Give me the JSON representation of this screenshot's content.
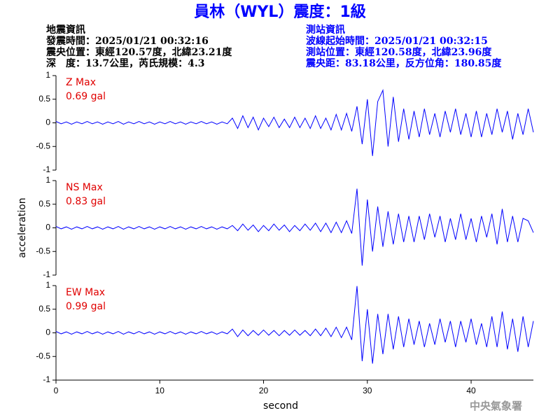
{
  "header": {
    "title": "員林（WYL）震度：1級",
    "left": [
      "地震資訊",
      "發震時間：2025/01/21 00:32:16",
      "震央位置：東經120.57度，北緯23.21度",
      "深　度：13.7公里，芮氏規模：4.3"
    ],
    "right": [
      "測站資訊",
      "波線起始時間：2025/01/21 00:32:15",
      "測站位置：東經120.58度，北緯23.96度",
      "震央距：83.18公里，反方位角：180.85度"
    ],
    "watermark": "中央氣象署"
  },
  "chart_data": [
    {
      "type": "line",
      "title": "Z Max",
      "subtitle": "0.69 gal",
      "color": "#0000ff",
      "x": [
        0,
        0.5,
        1,
        1.5,
        2,
        2.5,
        3,
        3.5,
        4,
        4.5,
        5,
        5.5,
        6,
        6.5,
        7,
        7.5,
        8,
        8.5,
        9,
        9.5,
        10,
        10.5,
        11,
        11.5,
        12,
        12.5,
        13,
        13.5,
        14,
        14.5,
        15,
        15.5,
        16,
        16.5,
        17,
        17.5,
        18,
        18.5,
        19,
        19.5,
        20,
        20.5,
        21,
        21.5,
        22,
        22.5,
        23,
        23.5,
        24,
        24.5,
        25,
        25.5,
        26,
        26.5,
        27,
        27.5,
        28,
        28.5,
        29,
        29.5,
        30,
        30.5,
        31,
        31.5,
        32,
        32.5,
        33,
        33.5,
        34,
        34.5,
        35,
        35.5,
        36,
        36.5,
        37,
        37.5,
        38,
        38.5,
        39,
        39.5,
        40,
        40.5,
        41,
        41.5,
        42,
        42.5,
        43,
        43.5,
        44,
        44.5,
        45,
        45.5,
        46
      ],
      "values": [
        0.03,
        -0.02,
        0.02,
        -0.03,
        0.02,
        -0.02,
        0.03,
        -0.02,
        0.02,
        -0.03,
        0.02,
        -0.02,
        0.03,
        -0.03,
        0.02,
        -0.02,
        0.03,
        -0.02,
        0.02,
        -0.03,
        0.02,
        -0.02,
        0.03,
        -0.02,
        0.02,
        -0.03,
        0.02,
        -0.02,
        0.03,
        -0.02,
        0.02,
        -0.03,
        0.02,
        -0.02,
        0.1,
        -0.12,
        0.15,
        -0.1,
        0.12,
        -0.15,
        0.1,
        -0.08,
        0.12,
        -0.1,
        0.08,
        -0.1,
        0.12,
        -0.1,
        0.1,
        -0.12,
        0.15,
        -0.12,
        0.1,
        -0.15,
        0.18,
        -0.15,
        0.2,
        -0.18,
        0.35,
        -0.45,
        0.5,
        -0.7,
        0.45,
        0.69,
        -0.5,
        0.55,
        -0.4,
        0.3,
        -0.35,
        0.25,
        -0.3,
        0.3,
        -0.25,
        0.2,
        -0.3,
        0.25,
        -0.2,
        0.3,
        -0.25,
        0.2,
        -0.3,
        0.25,
        -0.3,
        0.2,
        -0.25,
        0.3,
        -0.2,
        0.25,
        -0.35,
        0.2,
        -0.25,
        0.3,
        -0.2
      ],
      "xlim": [
        0,
        46
      ],
      "ylim": [
        -1,
        1
      ],
      "yticks": [
        -1,
        -0.5,
        0,
        0.5,
        1
      ]
    },
    {
      "type": "line",
      "title": "NS Max",
      "subtitle": "0.83 gal",
      "color": "#0000ff",
      "ylabel": "acceleration",
      "x": [
        0,
        0.5,
        1,
        1.5,
        2,
        2.5,
        3,
        3.5,
        4,
        4.5,
        5,
        5.5,
        6,
        6.5,
        7,
        7.5,
        8,
        8.5,
        9,
        9.5,
        10,
        10.5,
        11,
        11.5,
        12,
        12.5,
        13,
        13.5,
        14,
        14.5,
        15,
        15.5,
        16,
        16.5,
        17,
        17.5,
        18,
        18.5,
        19,
        19.5,
        20,
        20.5,
        21,
        21.5,
        22,
        22.5,
        23,
        23.5,
        24,
        24.5,
        25,
        25.5,
        26,
        26.5,
        27,
        27.5,
        28,
        28.5,
        29,
        29.5,
        30,
        30.5,
        31,
        31.5,
        32,
        32.5,
        33,
        33.5,
        34,
        34.5,
        35,
        35.5,
        36,
        36.5,
        37,
        37.5,
        38,
        38.5,
        39,
        39.5,
        40,
        40.5,
        41,
        41.5,
        42,
        42.5,
        43,
        43.5,
        44,
        44.5,
        45,
        45.5,
        46
      ],
      "values": [
        0.03,
        -0.02,
        0.02,
        -0.03,
        0.02,
        -0.02,
        0.03,
        -0.02,
        0.02,
        -0.03,
        0.02,
        -0.02,
        0.03,
        -0.03,
        0.02,
        -0.02,
        0.03,
        -0.02,
        0.02,
        -0.03,
        0.02,
        -0.02,
        0.03,
        -0.02,
        0.02,
        -0.03,
        0.02,
        -0.02,
        0.03,
        -0.02,
        0.02,
        -0.03,
        0.02,
        -0.02,
        0.05,
        -0.06,
        0.08,
        -0.05,
        0.06,
        -0.08,
        0.05,
        -0.06,
        0.08,
        -0.05,
        0.06,
        -0.08,
        0.05,
        -0.06,
        0.08,
        -0.05,
        0.1,
        -0.08,
        0.1,
        -0.1,
        0.12,
        -0.1,
        0.15,
        -0.12,
        0.83,
        -0.8,
        0.6,
        -0.5,
        0.45,
        -0.4,
        0.35,
        -0.35,
        0.3,
        -0.3,
        0.25,
        -0.3,
        0.25,
        -0.25,
        0.3,
        -0.2,
        0.25,
        -0.3,
        0.2,
        -0.25,
        0.3,
        -0.25,
        0.2,
        -0.3,
        0.25,
        -0.2,
        0.3,
        -0.35,
        0.4,
        -0.3,
        0.25,
        -0.3,
        0.2,
        0.15,
        -0.1
      ],
      "xlim": [
        0,
        46
      ],
      "ylim": [
        -1,
        1
      ],
      "yticks": [
        -1,
        -0.5,
        0,
        0.5,
        1
      ]
    },
    {
      "type": "line",
      "title": "EW Max",
      "subtitle": "0.99 gal",
      "color": "#0000ff",
      "xlabel": "second",
      "x": [
        0,
        0.5,
        1,
        1.5,
        2,
        2.5,
        3,
        3.5,
        4,
        4.5,
        5,
        5.5,
        6,
        6.5,
        7,
        7.5,
        8,
        8.5,
        9,
        9.5,
        10,
        10.5,
        11,
        11.5,
        12,
        12.5,
        13,
        13.5,
        14,
        14.5,
        15,
        15.5,
        16,
        16.5,
        17,
        17.5,
        18,
        18.5,
        19,
        19.5,
        20,
        20.5,
        21,
        21.5,
        22,
        22.5,
        23,
        23.5,
        24,
        24.5,
        25,
        25.5,
        26,
        26.5,
        27,
        27.5,
        28,
        28.5,
        29,
        29.5,
        30,
        30.5,
        31,
        31.5,
        32,
        32.5,
        33,
        33.5,
        34,
        34.5,
        35,
        35.5,
        36,
        36.5,
        37,
        37.5,
        38,
        38.5,
        39,
        39.5,
        40,
        40.5,
        41,
        41.5,
        42,
        42.5,
        43,
        43.5,
        44,
        44.5,
        45,
        45.5,
        46
      ],
      "values": [
        0.03,
        -0.02,
        0.02,
        -0.03,
        0.02,
        -0.02,
        0.03,
        -0.02,
        0.02,
        -0.03,
        0.02,
        -0.02,
        0.03,
        -0.03,
        0.02,
        -0.02,
        0.03,
        -0.02,
        0.02,
        -0.03,
        0.02,
        -0.02,
        0.03,
        -0.02,
        0.02,
        -0.03,
        0.02,
        -0.02,
        0.03,
        -0.02,
        0.02,
        -0.03,
        0.02,
        -0.02,
        0.08,
        -0.08,
        0.06,
        -0.06,
        0.05,
        -0.05,
        0.06,
        -0.05,
        0.05,
        -0.06,
        0.05,
        -0.05,
        0.06,
        -0.05,
        0.05,
        -0.06,
        0.08,
        -0.06,
        0.1,
        -0.08,
        0.12,
        -0.1,
        0.12,
        -0.15,
        0.99,
        -0.6,
        0.5,
        -0.65,
        0.4,
        -0.45,
        0.4,
        -0.35,
        0.35,
        -0.3,
        0.3,
        -0.25,
        0.25,
        -0.3,
        0.2,
        -0.25,
        0.3,
        -0.2,
        0.25,
        -0.3,
        0.25,
        -0.2,
        0.3,
        -0.25,
        0.2,
        -0.3,
        0.35,
        -0.3,
        0.45,
        -0.35,
        0.3,
        -0.4,
        0.35,
        -0.3,
        0.25
      ],
      "xlim": [
        0,
        46
      ],
      "xticks": [
        0,
        10,
        20,
        30,
        40
      ],
      "ylim": [
        -1,
        1
      ],
      "yticks": [
        -1,
        -0.5,
        0,
        0.5,
        1
      ]
    }
  ]
}
